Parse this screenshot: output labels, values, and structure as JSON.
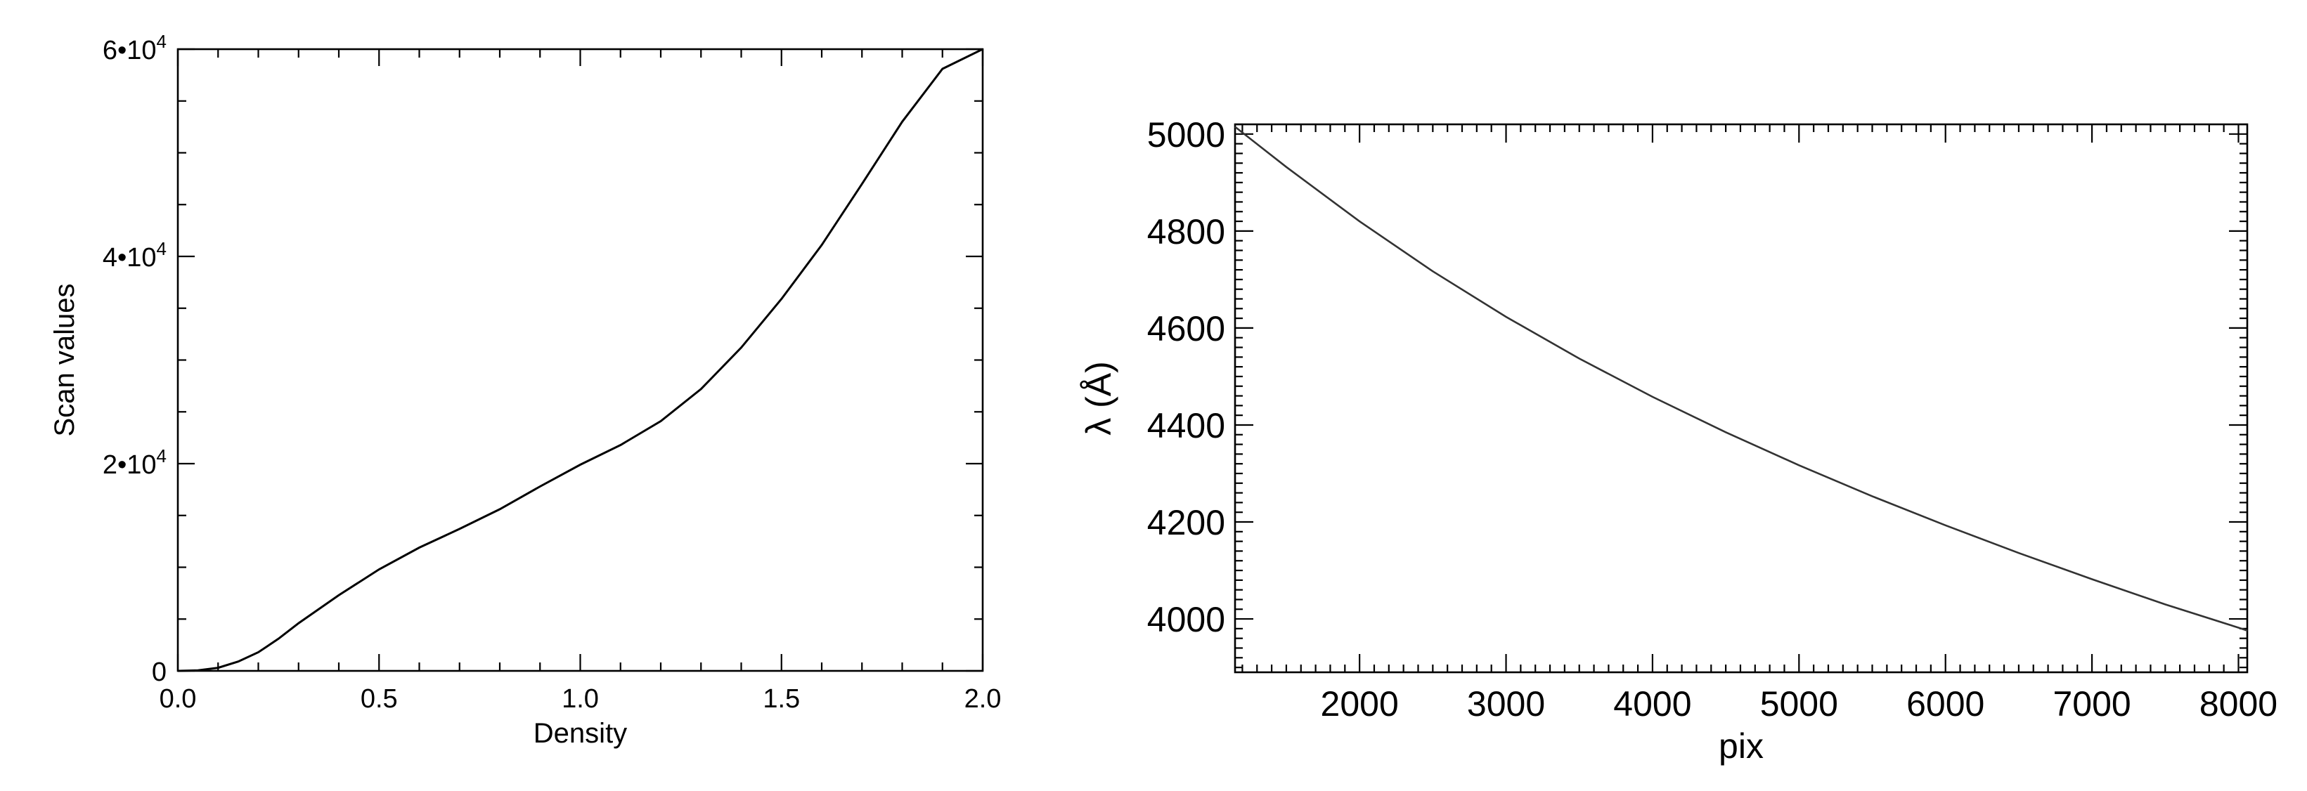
{
  "chart_data": [
    {
      "type": "line",
      "title": "",
      "xlabel": "Density",
      "ylabel": "Scan values",
      "xlim": [
        0.0,
        2.0
      ],
      "ylim": [
        0,
        60000
      ],
      "grid": false,
      "x_ticks": [
        {
          "value": 0.0,
          "label": "0.0"
        },
        {
          "value": 0.5,
          "label": "0.5"
        },
        {
          "value": 1.0,
          "label": "1.0"
        },
        {
          "value": 1.5,
          "label": "1.5"
        },
        {
          "value": 2.0,
          "label": "2.0"
        }
      ],
      "y_ticks": [
        {
          "value": 0,
          "base": "0",
          "exp": ""
        },
        {
          "value": 20000,
          "base": "2•10",
          "exp": "4"
        },
        {
          "value": 40000,
          "base": "4•10",
          "exp": "4"
        },
        {
          "value": 60000,
          "base": "6•10",
          "exp": "4"
        }
      ],
      "series": [
        {
          "x": [
            0.0,
            0.05,
            0.1,
            0.15,
            0.2,
            0.25,
            0.3,
            0.4,
            0.5,
            0.6,
            0.7,
            0.8,
            0.9,
            1.0,
            1.1,
            1.2,
            1.3,
            1.4,
            1.5,
            1.6,
            1.7,
            1.8,
            1.9,
            2.0
          ],
          "y": [
            0,
            50,
            300,
            900,
            1800,
            3100,
            4600,
            7300,
            9800,
            11900,
            13700,
            15600,
            17800,
            19900,
            21800,
            24100,
            27200,
            31200,
            35900,
            41100,
            47000,
            53000,
            58100,
            61600
          ]
        }
      ]
    },
    {
      "type": "line",
      "title": "",
      "xlabel": "pix",
      "ylabel": "λ (Å)",
      "xlim": [
        1150,
        8060
      ],
      "ylim": [
        3890,
        5020
      ],
      "grid": false,
      "x_ticks": [
        {
          "value": 2000,
          "label": "2000"
        },
        {
          "value": 3000,
          "label": "3000"
        },
        {
          "value": 4000,
          "label": "4000"
        },
        {
          "value": 5000,
          "label": "5000"
        },
        {
          "value": 6000,
          "label": "6000"
        },
        {
          "value": 7000,
          "label": "7000"
        },
        {
          "value": 8000,
          "label": "8000"
        }
      ],
      "y_ticks": [
        {
          "value": 4000,
          "label": "4000"
        },
        {
          "value": 4200,
          "label": "4200"
        },
        {
          "value": 4400,
          "label": "4400"
        },
        {
          "value": 4600,
          "label": "4600"
        },
        {
          "value": 4800,
          "label": "4800"
        },
        {
          "value": 5000,
          "label": "5000"
        }
      ],
      "series": [
        {
          "x": [
            1150,
            1500,
            2000,
            2500,
            3000,
            3500,
            4000,
            4500,
            5000,
            5500,
            6000,
            6500,
            7000,
            7500,
            8000,
            8060
          ],
          "y": [
            5015,
            4932,
            4820,
            4717,
            4623,
            4537,
            4458,
            4385,
            4317,
            4253,
            4193,
            4136,
            4082,
            4030,
            3982,
            3976
          ]
        }
      ]
    }
  ]
}
